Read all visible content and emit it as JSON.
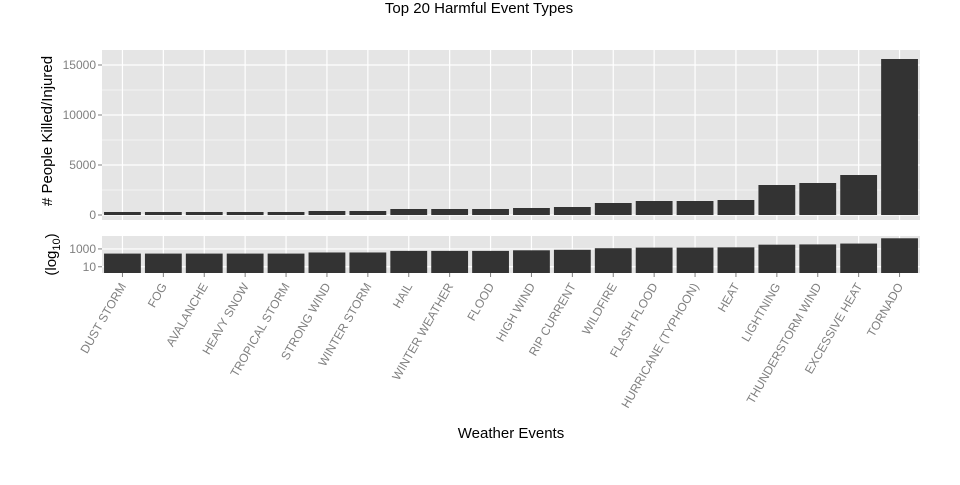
{
  "chart_data": {
    "type": "bar",
    "title": "Top 20 Harmful Event Types",
    "xlabel": "Weather Events",
    "categories": [
      "DUST STORM",
      "FOG",
      "AVALANCHE",
      "HEAVY SNOW",
      "TROPICAL STORM",
      "STRONG WIND",
      "WINTER STORM",
      "HAIL",
      "WINTER WEATHER",
      "FLOOD",
      "HIGH WIND",
      "RIP CURRENT",
      "WILDFIRE",
      "FLASH FLOOD",
      "HURRICANE (TYPHOON)",
      "HEAT",
      "LIGHTNING",
      "THUNDERSTORM WIND",
      "EXCESSIVE HEAT",
      "TORNADO"
    ],
    "values": [
      300,
      300,
      300,
      300,
      300,
      400,
      400,
      600,
      600,
      600,
      700,
      800,
      1200,
      1400,
      1400,
      1500,
      3000,
      3200,
      4000,
      15600
    ],
    "panels": [
      {
        "name": "linear",
        "ylabel": "# People Killed/Injured",
        "scale": "linear",
        "ylim": [
          0,
          17000
        ],
        "yticks": [
          0,
          5000,
          10000,
          15000
        ],
        "ytick_labels": [
          "0",
          "5000",
          "10000",
          "15000"
        ]
      },
      {
        "name": "log",
        "ylabel_main": "(log",
        "ylabel_sub": "10",
        "ylabel_end": ")",
        "scale": "log10",
        "ylim_log10": [
          0.3,
          4.45
        ],
        "yticks": [
          10,
          1000
        ],
        "ytick_labels": [
          "10",
          "1000"
        ]
      }
    ],
    "grid": true,
    "colors": {
      "bar": "#333333",
      "panel_bg": "#e5e5e5",
      "grid": "#ffffff",
      "tick_text": "#7f7f7f"
    }
  }
}
